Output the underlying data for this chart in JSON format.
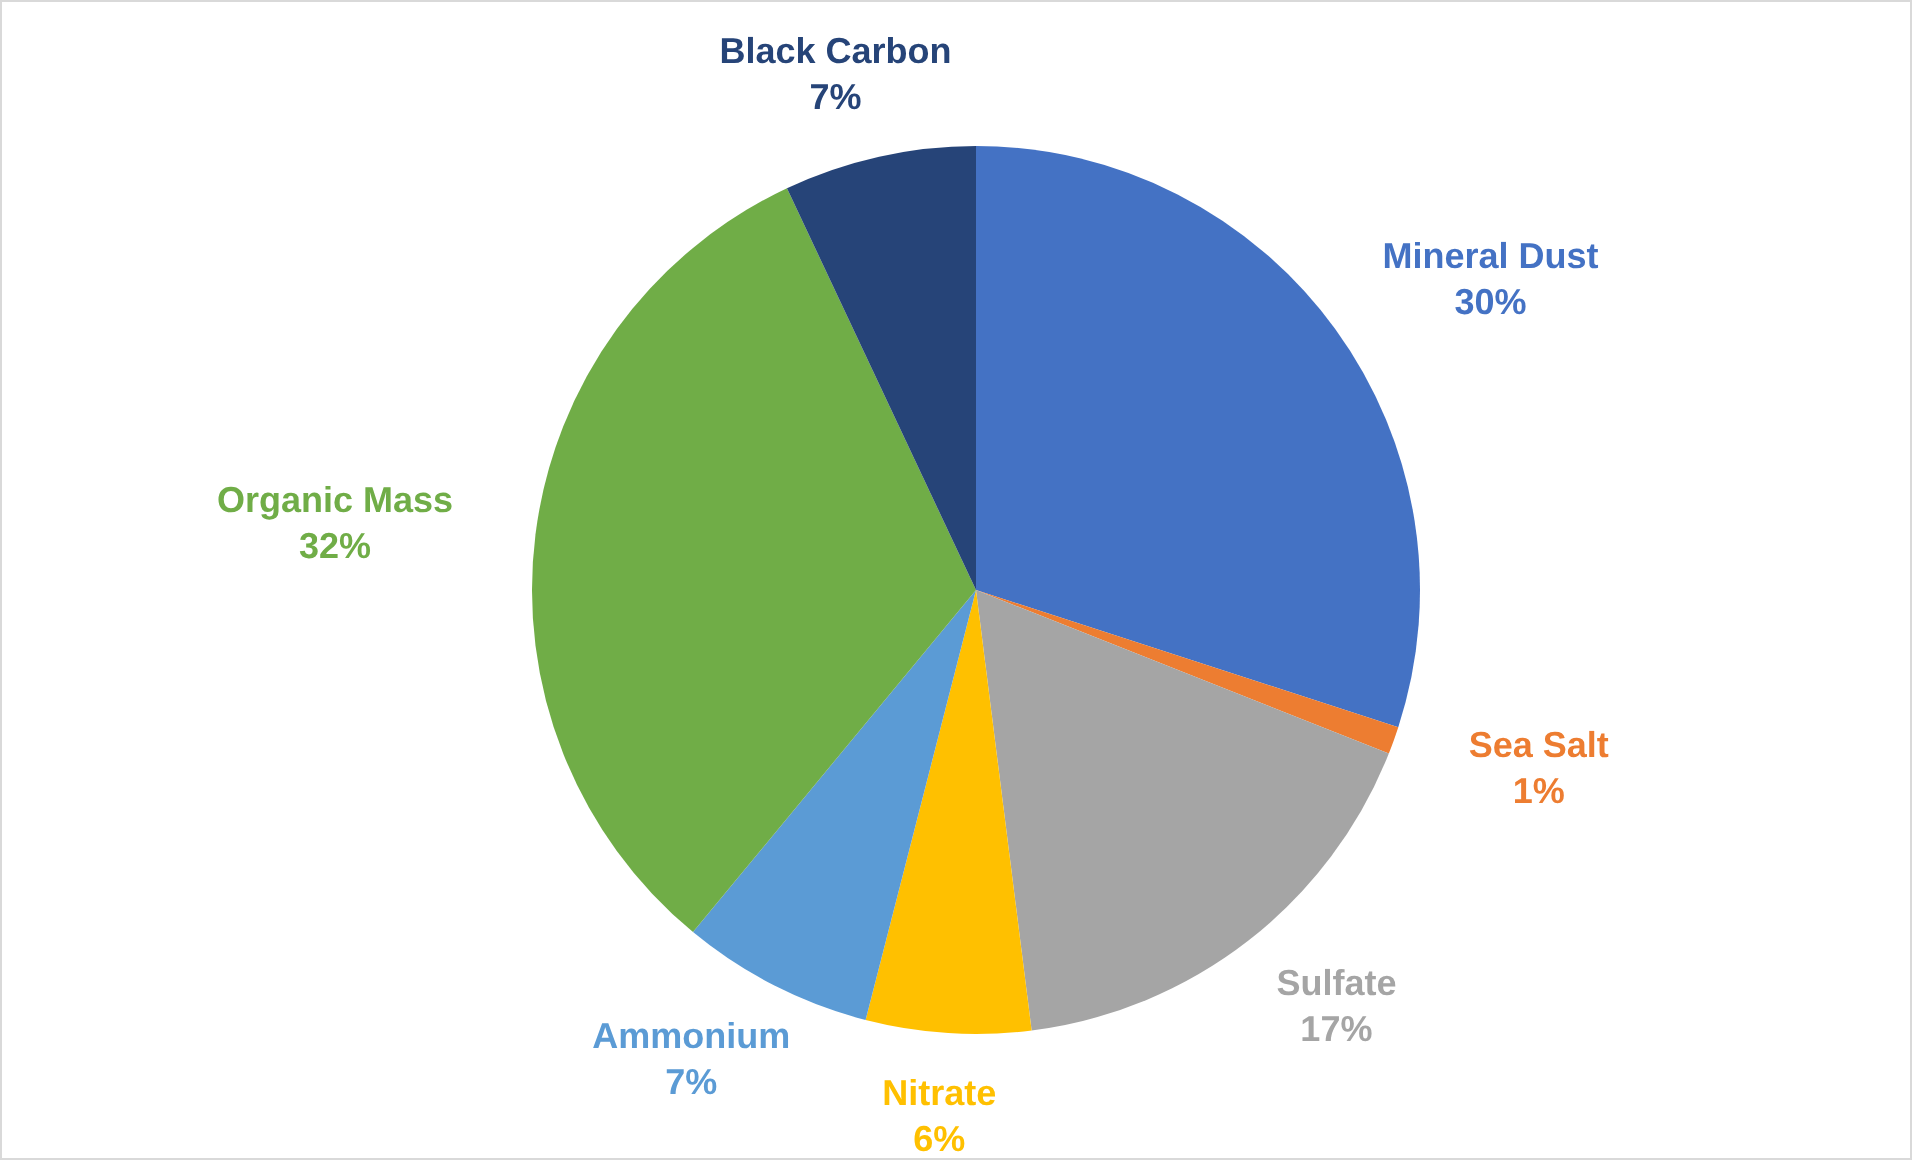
{
  "chart_data": {
    "type": "pie",
    "categories": [
      "Mineral Dust",
      "Sea Salt",
      "Sulfate",
      "Nitrate",
      "Ammonium",
      "Organic Mass",
      "Black Carbon"
    ],
    "values": [
      30,
      1,
      17,
      6,
      7,
      32,
      7
    ],
    "colors": [
      "#4472c4",
      "#ed7d31",
      "#a5a5a5",
      "#ffc000",
      "#5b9bd5",
      "#70ad47",
      "#264478"
    ],
    "value_labels": [
      "30%",
      "1%",
      "17%",
      "6%",
      "7%",
      "32%",
      "7%"
    ],
    "legend": false
  }
}
